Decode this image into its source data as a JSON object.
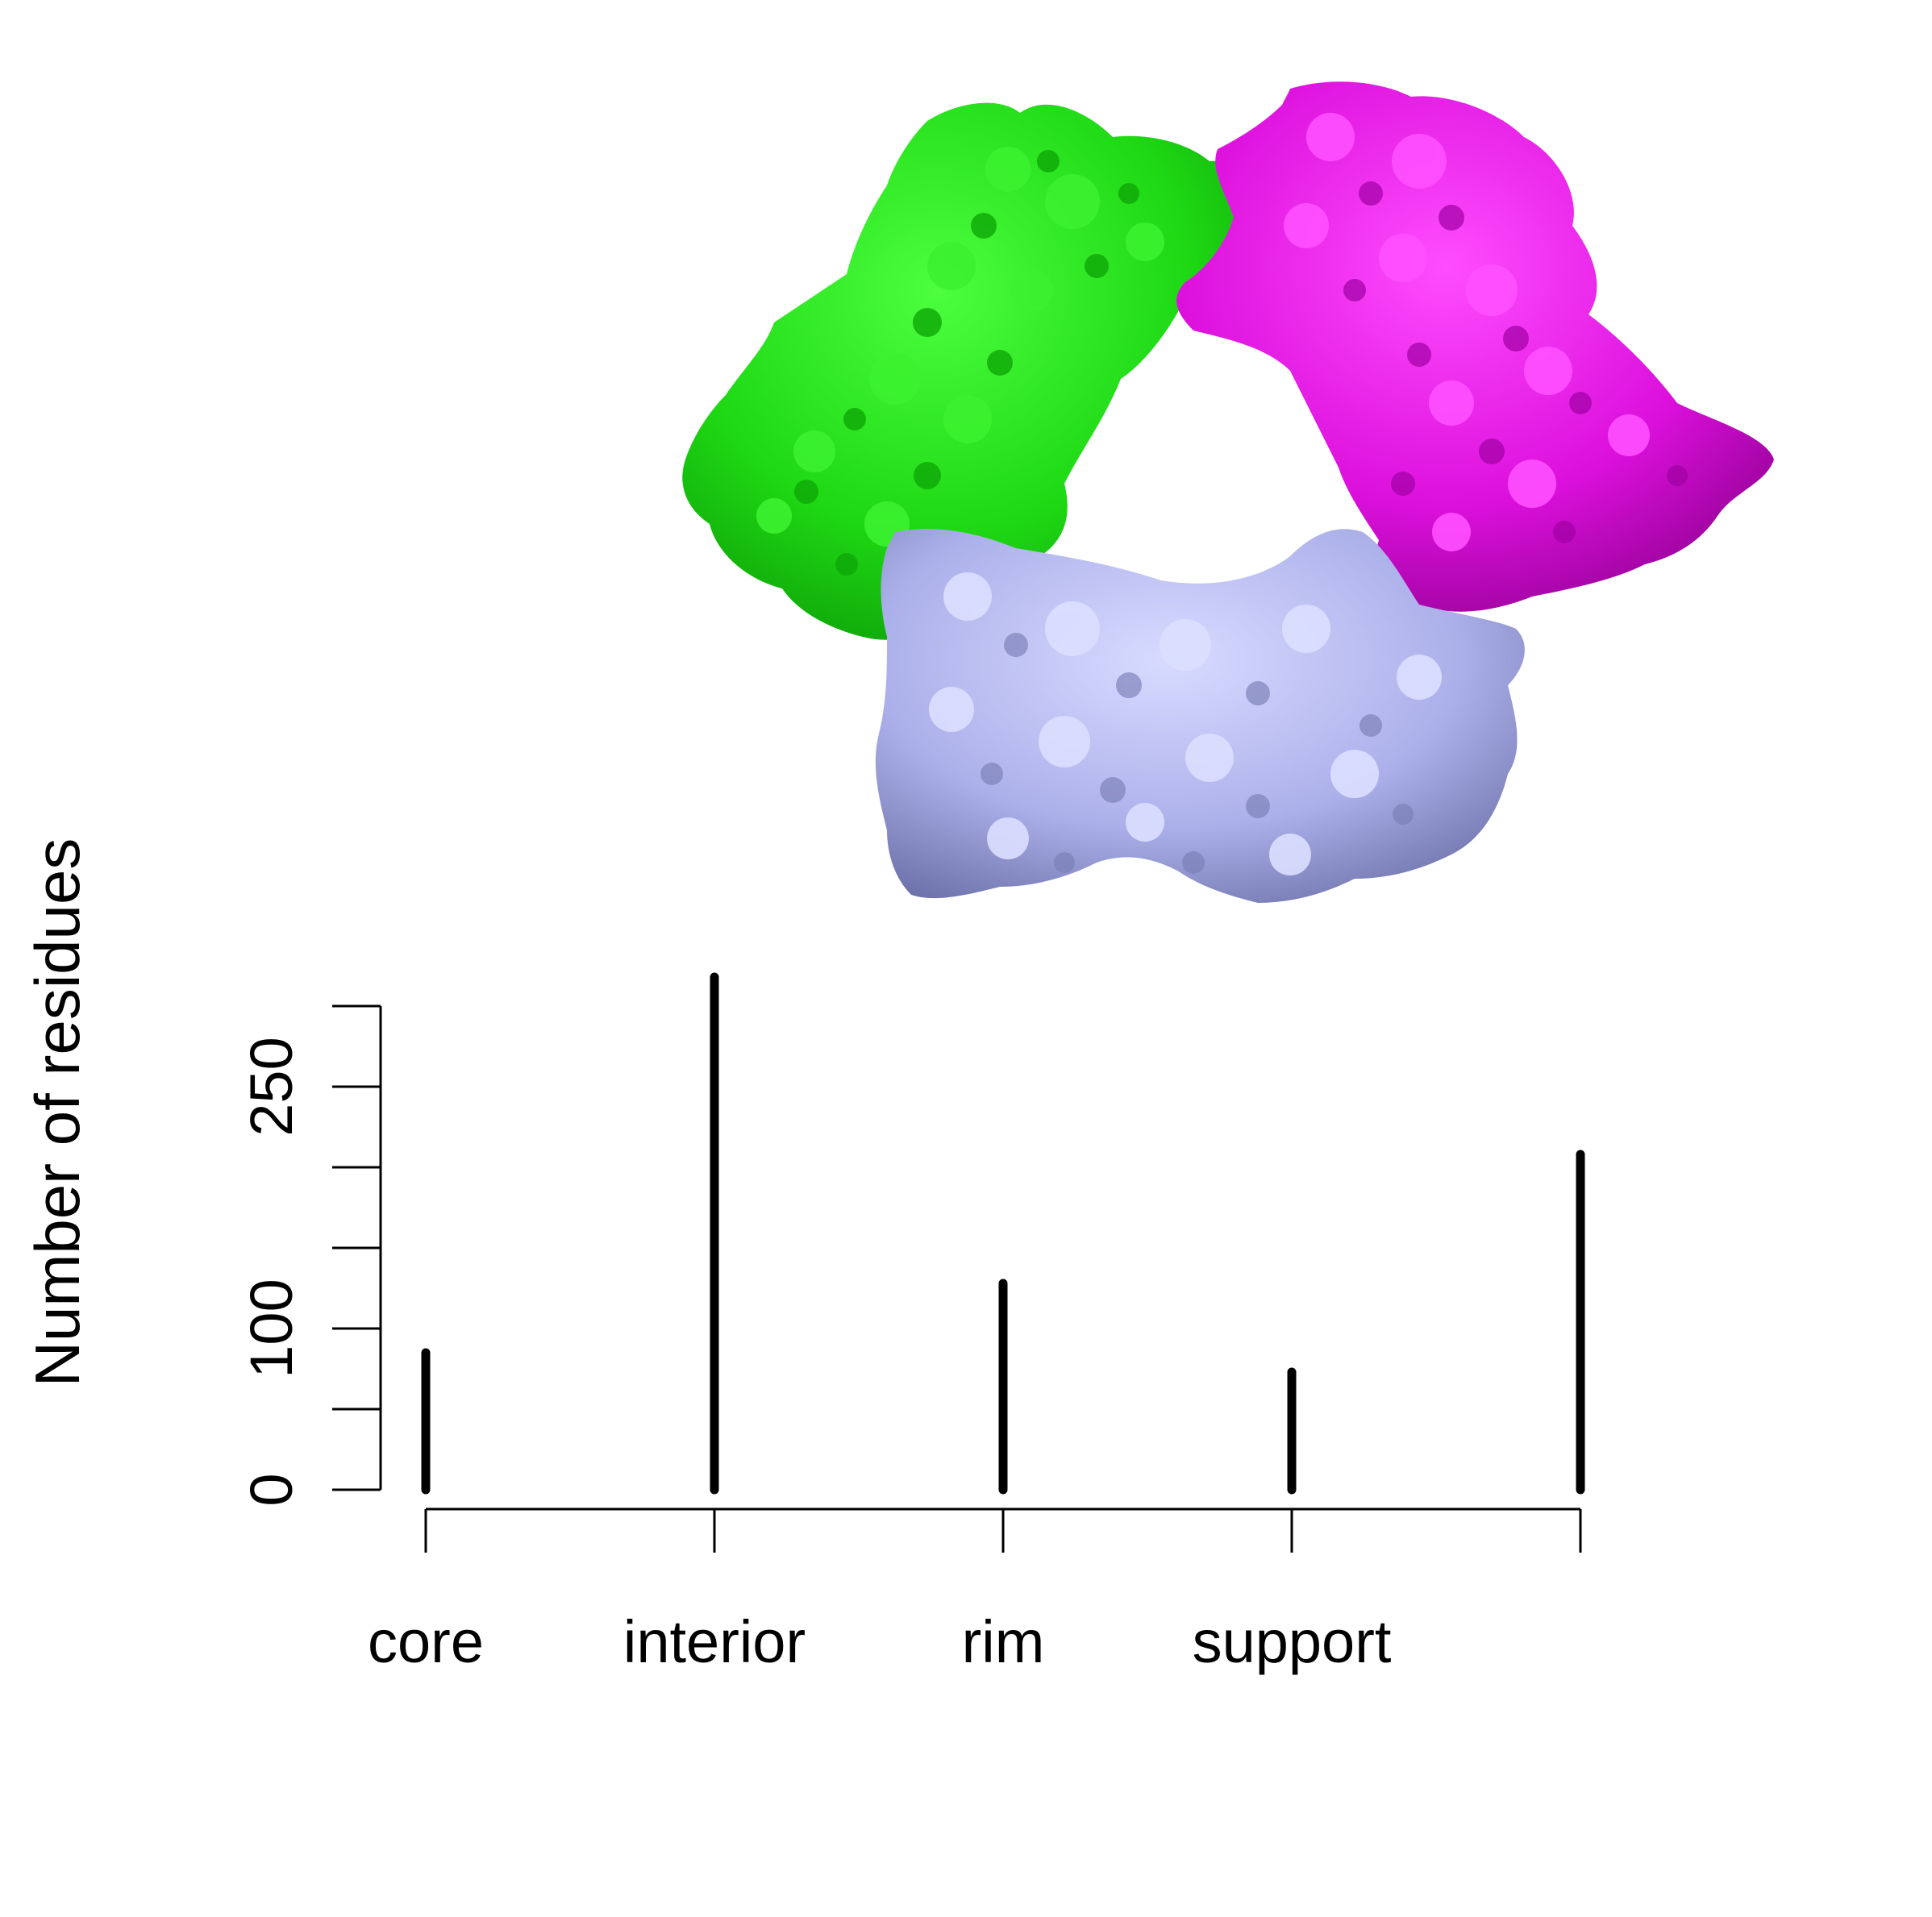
{
  "figure": {
    "structure_image": {
      "description_icon": "protein-surface-trimer",
      "subunit_colors": [
        "#22e61a",
        "#e01ee0",
        "#b0b4ee"
      ]
    }
  },
  "chart_data": {
    "type": "bar",
    "categories": [
      "core",
      "interior",
      "rim",
      "support",
      ""
    ],
    "values": [
      85,
      318,
      128,
      73,
      208
    ],
    "title": "",
    "xlabel": "",
    "ylabel": "Number of residues",
    "ylim": [
      0,
      300
    ],
    "yticks": [
      0,
      50,
      100,
      150,
      200,
      250,
      300
    ],
    "ytick_labels": [
      "0",
      "",
      "100",
      "",
      "",
      "250",
      ""
    ],
    "grid": false,
    "legend": "none",
    "bar_color": "#000000"
  }
}
